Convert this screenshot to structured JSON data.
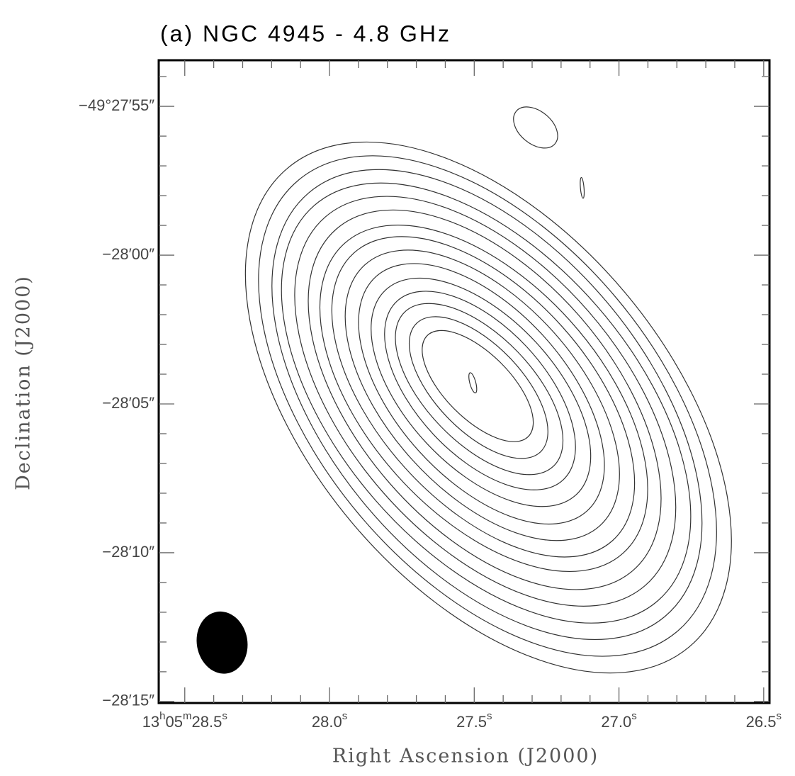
{
  "chart_data": {
    "type": "contour",
    "title": "(a) NGC 4945 - 4.8 GHz",
    "xlabel": "Right Ascension (J2000)",
    "ylabel": "Declination (J2000)",
    "xlim": [
      28.59,
      26.48
    ],
    "ylim": [
      -15.05,
      6.55
    ],
    "xticks": [
      {
        "value": 28.5,
        "label": "13h05m28.5s"
      },
      {
        "value": 28.0,
        "label": "28.0s"
      },
      {
        "value": 27.5,
        "label": "27.5s"
      },
      {
        "value": 27.0,
        "label": "27.0s"
      },
      {
        "value": 26.5,
        "label": "26.5s"
      }
    ],
    "yticks": [
      {
        "value": 5,
        "label": "−49°27′55″"
      },
      {
        "value": 0,
        "label": "−28′00″"
      },
      {
        "value": -5,
        "label": "−28′05″"
      },
      {
        "value": -10,
        "label": "−28′10″"
      },
      {
        "value": -15,
        "label": "−28′15″"
      }
    ],
    "xminorticks": [
      28.4,
      28.3,
      28.2,
      28.1,
      27.9,
      27.8,
      27.7,
      27.6,
      27.4,
      27.3,
      27.2,
      27.1,
      26.9,
      26.8,
      26.7,
      26.6
    ],
    "yminorticks": [
      6,
      4,
      3,
      2,
      1,
      -1,
      -2,
      -3,
      -4,
      -6,
      -7,
      -8,
      -9,
      -11,
      -12,
      -13,
      -14
    ],
    "color": "#333333",
    "contours": [
      {
        "x": 27.505,
        "y": -4.29,
        "a": 0.35,
        "b": 0.1,
        "angle": 75
      },
      {
        "x": 27.488,
        "y": -4.4,
        "a": 2.4,
        "b": 1.1,
        "angle": 45
      },
      {
        "x": 27.485,
        "y": -4.45,
        "a": 3.0,
        "b": 1.45,
        "angle": 46
      },
      {
        "x": 27.483,
        "y": -4.5,
        "a": 3.6,
        "b": 1.8,
        "angle": 46
      },
      {
        "x": 27.48,
        "y": -4.55,
        "a": 4.1,
        "b": 2.15,
        "angle": 47
      },
      {
        "x": 27.477,
        "y": -4.61,
        "a": 4.7,
        "b": 2.5,
        "angle": 47
      },
      {
        "x": 27.475,
        "y": -4.66,
        "a": 5.3,
        "b": 2.85,
        "angle": 48
      },
      {
        "x": 27.472,
        "y": -4.71,
        "a": 5.9,
        "b": 3.2,
        "angle": 48
      },
      {
        "x": 27.469,
        "y": -4.76,
        "a": 6.5,
        "b": 3.55,
        "angle": 48
      },
      {
        "x": 27.467,
        "y": -4.81,
        "a": 7.0,
        "b": 3.9,
        "angle": 48
      },
      {
        "x": 27.464,
        "y": -4.86,
        "a": 7.6,
        "b": 4.25,
        "angle": 49
      },
      {
        "x": 27.462,
        "y": -4.91,
        "a": 8.2,
        "b": 4.6,
        "angle": 49
      },
      {
        "x": 27.459,
        "y": -4.97,
        "a": 8.8,
        "b": 4.95,
        "angle": 49
      },
      {
        "x": 27.456,
        "y": -5.02,
        "a": 9.3,
        "b": 5.3,
        "angle": 50
      },
      {
        "x": 27.454,
        "y": -5.07,
        "a": 9.9,
        "b": 5.65,
        "angle": 50
      },
      {
        "x": 27.451,
        "y": -5.12,
        "a": 10.5,
        "b": 6.0,
        "angle": 50
      },
      {
        "x": 27.288,
        "y": 4.29,
        "a": 0.85,
        "b": 0.55,
        "angle": 40
      },
      {
        "x": 27.127,
        "y": 2.26,
        "a": 0.35,
        "b": 0.06,
        "angle": 85
      }
    ],
    "beam": {
      "x": 28.371,
      "y": -13.02,
      "a": 1.05,
      "b": 0.85,
      "angle": 80,
      "color": "#000000"
    }
  }
}
